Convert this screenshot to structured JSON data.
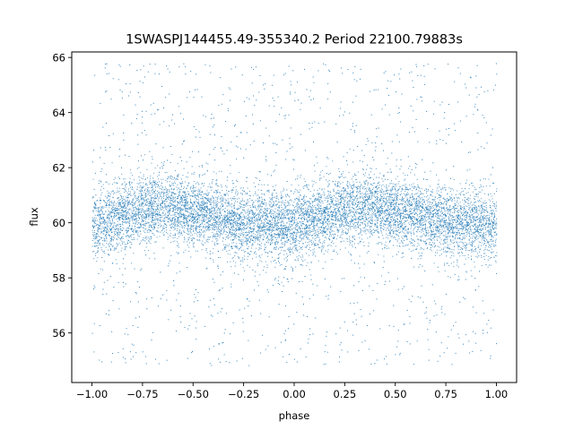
{
  "chart_data": {
    "type": "scatter",
    "title": "1SWASPJ144455.49-355340.2 Period 22100.79883s",
    "xlabel": "phase",
    "ylabel": "flux",
    "xlim": [
      -1.1,
      1.1
    ],
    "ylim": [
      54.2,
      66.2
    ],
    "xticks": [
      -1.0,
      -0.75,
      -0.5,
      -0.25,
      0.0,
      0.25,
      0.5,
      0.75,
      1.0
    ],
    "xtick_labels": [
      "−1.00",
      "−0.75",
      "−0.50",
      "−0.25",
      "0.00",
      "0.25",
      "0.50",
      "0.75",
      "1.00"
    ],
    "yticks": [
      56,
      58,
      60,
      62,
      64,
      66
    ],
    "ytick_labels": [
      "56",
      "58",
      "60",
      "62",
      "64",
      "66"
    ],
    "grid": false,
    "marker_color": "#1f77b4",
    "series": [
      {
        "x": [
          -1.0,
          -0.875,
          -0.75,
          -0.625,
          -0.5,
          -0.375,
          -0.25,
          -0.125,
          0.0,
          0.125,
          0.25,
          0.375,
          0.5,
          0.625,
          0.75,
          0.875,
          1.0
        ],
        "values": [
          59.9,
          60.2,
          60.5,
          60.6,
          60.4,
          60.2,
          60.0,
          60.0,
          59.95,
          60.2,
          60.5,
          60.6,
          60.4,
          60.2,
          60.0,
          60.0,
          59.9
        ]
      }
    ]
  }
}
